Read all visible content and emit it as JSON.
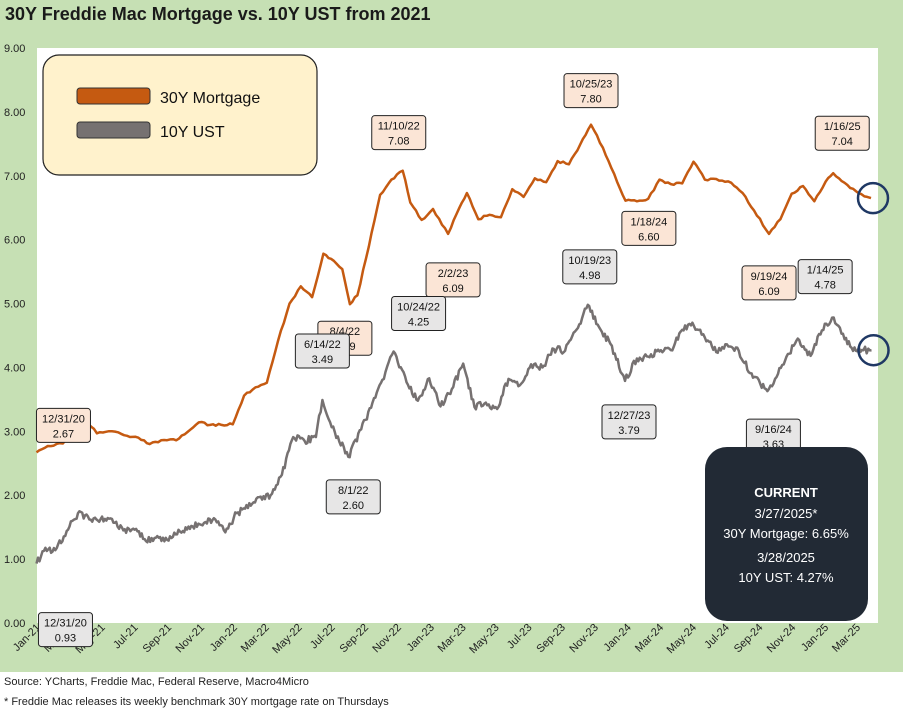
{
  "title": "30Y Freddie Mac Mortgage vs. 10Y UST from 2021",
  "source": "Source: YCharts, Freddie Mac, Federal Reserve, Macro4Micro",
  "footnote": "* Freddie Mac releases its weekly benchmark 30Y mortgage rate on Thursdays",
  "colors": {
    "mortgage": "#c55a11",
    "ust": "#767171",
    "background": "#c6e0b4",
    "legend_bg": "#fff2cc",
    "current_bg": "#222a35",
    "callout_pink": "#fbe5d6",
    "callout_grey": "#e7e6e6",
    "circle": "#1f3864"
  },
  "chart_data": {
    "type": "line",
    "ylim": [
      0,
      9
    ],
    "yticks": [
      "0.00",
      "1.00",
      "2.00",
      "3.00",
      "4.00",
      "5.00",
      "6.00",
      "7.00",
      "8.00",
      "9.00"
    ],
    "xticks": [
      "Jan-21",
      "Mar-21",
      "May-21",
      "Jul-21",
      "Sep-21",
      "Nov-21",
      "Jan-22",
      "Mar-22",
      "May-22",
      "Jul-22",
      "Sep-22",
      "Nov-22",
      "Jan-23",
      "Mar-23",
      "May-23",
      "Jul-23",
      "Sep-23",
      "Nov-23",
      "Jan-24",
      "Mar-24",
      "May-24",
      "Jul-24",
      "Sep-24",
      "Nov-24",
      "Jan-25",
      "Mar-25"
    ],
    "legend": {
      "placement": "top-left",
      "items": [
        "30Y Mortgage",
        "10Y UST"
      ]
    },
    "series": [
      {
        "name": "30Y Mortgage",
        "key": "mortgage",
        "points": [
          [
            "2020-12-31",
            2.67
          ],
          [
            "2021-01-21",
            2.77
          ],
          [
            "2021-02-18",
            2.81
          ],
          [
            "2021-03-11",
            3.05
          ],
          [
            "2021-04-01",
            3.18
          ],
          [
            "2021-04-22",
            2.97
          ],
          [
            "2021-05-20",
            3.0
          ],
          [
            "2021-06-17",
            2.93
          ],
          [
            "2021-07-08",
            2.9
          ],
          [
            "2021-07-29",
            2.8
          ],
          [
            "2021-08-19",
            2.86
          ],
          [
            "2021-09-16",
            2.86
          ],
          [
            "2021-10-07",
            2.99
          ],
          [
            "2021-10-28",
            3.14
          ],
          [
            "2021-11-18",
            3.1
          ],
          [
            "2021-12-09",
            3.1
          ],
          [
            "2021-12-30",
            3.11
          ],
          [
            "2022-01-20",
            3.56
          ],
          [
            "2022-02-10",
            3.69
          ],
          [
            "2022-03-03",
            3.76
          ],
          [
            "2022-03-24",
            4.42
          ],
          [
            "2022-04-14",
            5.0
          ],
          [
            "2022-05-05",
            5.27
          ],
          [
            "2022-05-26",
            5.1
          ],
          [
            "2022-06-16",
            5.78
          ],
          [
            "2022-06-30",
            5.7
          ],
          [
            "2022-07-21",
            5.54
          ],
          [
            "2022-08-04",
            4.99
          ],
          [
            "2022-08-18",
            5.13
          ],
          [
            "2022-09-08",
            5.89
          ],
          [
            "2022-09-29",
            6.7
          ],
          [
            "2022-10-20",
            6.94
          ],
          [
            "2022-11-10",
            7.08
          ],
          [
            "2022-11-24",
            6.58
          ],
          [
            "2022-12-15",
            6.31
          ],
          [
            "2023-01-05",
            6.48
          ],
          [
            "2023-02-02",
            6.09
          ],
          [
            "2023-02-23",
            6.5
          ],
          [
            "2023-03-09",
            6.73
          ],
          [
            "2023-03-30",
            6.32
          ],
          [
            "2023-04-20",
            6.39
          ],
          [
            "2023-05-11",
            6.35
          ],
          [
            "2023-06-01",
            6.79
          ],
          [
            "2023-06-22",
            6.67
          ],
          [
            "2023-07-13",
            6.96
          ],
          [
            "2023-08-03",
            6.9
          ],
          [
            "2023-08-24",
            7.23
          ],
          [
            "2023-09-14",
            7.18
          ],
          [
            "2023-10-05",
            7.49
          ],
          [
            "2023-10-25",
            7.8
          ],
          [
            "2023-11-16",
            7.44
          ],
          [
            "2023-12-07",
            7.03
          ],
          [
            "2023-12-28",
            6.61
          ],
          [
            "2024-01-18",
            6.6
          ],
          [
            "2024-02-08",
            6.64
          ],
          [
            "2024-02-29",
            6.94
          ],
          [
            "2024-03-21",
            6.87
          ],
          [
            "2024-04-11",
            6.88
          ],
          [
            "2024-05-02",
            7.22
          ],
          [
            "2024-05-23",
            6.94
          ],
          [
            "2024-06-13",
            6.95
          ],
          [
            "2024-07-11",
            6.89
          ],
          [
            "2024-08-01",
            6.73
          ],
          [
            "2024-08-22",
            6.46
          ],
          [
            "2024-09-19",
            6.09
          ],
          [
            "2024-10-10",
            6.32
          ],
          [
            "2024-10-31",
            6.72
          ],
          [
            "2024-11-21",
            6.84
          ],
          [
            "2024-12-12",
            6.6
          ],
          [
            "2025-01-02",
            6.91
          ],
          [
            "2025-01-16",
            7.04
          ],
          [
            "2025-02-06",
            6.89
          ],
          [
            "2025-02-27",
            6.76
          ],
          [
            "2025-03-20",
            6.67
          ],
          [
            "2025-03-27",
            6.65
          ]
        ]
      },
      {
        "name": "10Y UST",
        "key": "ust",
        "points": [
          [
            "2020-12-31",
            0.93
          ],
          [
            "2021-01-14",
            1.13
          ],
          [
            "2021-02-04",
            1.14
          ],
          [
            "2021-02-25",
            1.44
          ],
          [
            "2021-03-18",
            1.72
          ],
          [
            "2021-04-08",
            1.62
          ],
          [
            "2021-04-29",
            1.63
          ],
          [
            "2021-05-20",
            1.63
          ],
          [
            "2021-06-10",
            1.45
          ],
          [
            "2021-07-01",
            1.46
          ],
          [
            "2021-07-22",
            1.28
          ],
          [
            "2021-08-12",
            1.36
          ],
          [
            "2021-09-02",
            1.29
          ],
          [
            "2021-09-23",
            1.43
          ],
          [
            "2021-10-14",
            1.52
          ],
          [
            "2021-11-04",
            1.53
          ],
          [
            "2021-11-25",
            1.64
          ],
          [
            "2021-12-16",
            1.42
          ],
          [
            "2022-01-06",
            1.72
          ],
          [
            "2022-01-27",
            1.8
          ],
          [
            "2022-02-17",
            1.97
          ],
          [
            "2022-03-10",
            2.0
          ],
          [
            "2022-03-31",
            2.32
          ],
          [
            "2022-04-21",
            2.91
          ],
          [
            "2022-05-12",
            2.85
          ],
          [
            "2022-06-02",
            2.91
          ],
          [
            "2022-06-14",
            3.49
          ],
          [
            "2022-07-07",
            2.99
          ],
          [
            "2022-08-01",
            2.6
          ],
          [
            "2022-08-25",
            3.03
          ],
          [
            "2022-09-15",
            3.45
          ],
          [
            "2022-10-06",
            3.82
          ],
          [
            "2022-10-24",
            4.25
          ],
          [
            "2022-11-17",
            3.77
          ],
          [
            "2022-12-08",
            3.48
          ],
          [
            "2022-12-29",
            3.83
          ],
          [
            "2023-01-19",
            3.39
          ],
          [
            "2023-02-09",
            3.66
          ],
          [
            "2023-03-02",
            4.06
          ],
          [
            "2023-03-23",
            3.38
          ],
          [
            "2023-04-13",
            3.45
          ],
          [
            "2023-05-04",
            3.35
          ],
          [
            "2023-05-25",
            3.82
          ],
          [
            "2023-06-15",
            3.72
          ],
          [
            "2023-07-06",
            4.05
          ],
          [
            "2023-07-27",
            4.0
          ],
          [
            "2023-08-17",
            4.29
          ],
          [
            "2023-09-07",
            4.26
          ],
          [
            "2023-09-28",
            4.59
          ],
          [
            "2023-10-19",
            4.98
          ],
          [
            "2023-11-09",
            4.63
          ],
          [
            "2023-11-30",
            4.37
          ],
          [
            "2023-12-27",
            3.79
          ],
          [
            "2024-01-18",
            4.14
          ],
          [
            "2024-02-08",
            4.17
          ],
          [
            "2024-02-29",
            4.25
          ],
          [
            "2024-03-21",
            4.27
          ],
          [
            "2024-04-11",
            4.59
          ],
          [
            "2024-04-30",
            4.7
          ],
          [
            "2024-05-23",
            4.47
          ],
          [
            "2024-06-13",
            4.24
          ],
          [
            "2024-07-03",
            4.36
          ],
          [
            "2024-07-25",
            4.26
          ],
          [
            "2024-08-15",
            3.91
          ],
          [
            "2024-09-16",
            3.63
          ],
          [
            "2024-10-03",
            3.85
          ],
          [
            "2024-10-24",
            4.21
          ],
          [
            "2024-11-14",
            4.43
          ],
          [
            "2024-12-05",
            4.18
          ],
          [
            "2024-12-26",
            4.58
          ],
          [
            "2025-01-14",
            4.78
          ],
          [
            "2025-02-06",
            4.44
          ],
          [
            "2025-02-27",
            4.26
          ],
          [
            "2025-03-13",
            4.27
          ],
          [
            "2025-03-28",
            4.27
          ]
        ]
      }
    ],
    "annotations": [
      {
        "series": "mortgage",
        "date": "2020-12-31",
        "label": "12/31/20",
        "value": "2.67"
      },
      {
        "series": "mortgage",
        "date": "2022-08-04",
        "label": "8/4/22",
        "value": "4.99"
      },
      {
        "series": "mortgage",
        "date": "2022-11-10",
        "label": "11/10/22",
        "value": "7.08"
      },
      {
        "series": "mortgage",
        "date": "2023-02-02",
        "label": "2/2/23",
        "value": "6.09"
      },
      {
        "series": "mortgage",
        "date": "2023-10-25",
        "label": "10/25/23",
        "value": "7.80"
      },
      {
        "series": "mortgage",
        "date": "2024-01-18",
        "label": "1/18/24",
        "value": "6.60"
      },
      {
        "series": "mortgage",
        "date": "2024-09-19",
        "label": "9/19/24",
        "value": "6.09"
      },
      {
        "series": "mortgage",
        "date": "2025-01-16",
        "label": "1/16/25",
        "value": "7.04"
      },
      {
        "series": "ust",
        "date": "2020-12-31",
        "label": "12/31/20",
        "value": "0.93"
      },
      {
        "series": "ust",
        "date": "2022-06-14",
        "label": "6/14/22",
        "value": "3.49"
      },
      {
        "series": "ust",
        "date": "2022-08-01",
        "label": "8/1/22",
        "value": "2.60"
      },
      {
        "series": "ust",
        "date": "2022-10-24",
        "label": "10/24/22",
        "value": "4.25"
      },
      {
        "series": "ust",
        "date": "2023-10-19",
        "label": "10/19/23",
        "value": "4.98"
      },
      {
        "series": "ust",
        "date": "2023-12-27",
        "label": "12/27/23",
        "value": "3.79"
      },
      {
        "series": "ust",
        "date": "2024-09-16",
        "label": "9/16/24",
        "value": "3.63"
      },
      {
        "series": "ust",
        "date": "2025-01-14",
        "label": "1/14/25",
        "value": "4.78"
      }
    ],
    "current": {
      "heading": "CURRENT",
      "mortgage_date": "3/27/2025*",
      "mortgage_line": "30Y Mortgage: 6.65%",
      "ust_date": "3/28/2025",
      "ust_line": "10Y UST: 4.27%"
    }
  }
}
